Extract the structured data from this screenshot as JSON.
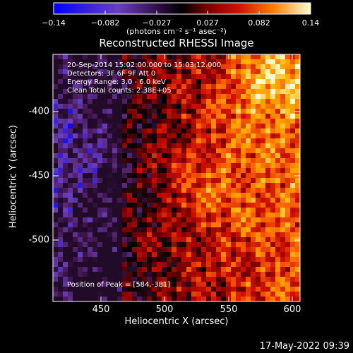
{
  "colorbar": {
    "ticks": [
      "−0.14",
      "−0.082",
      "−0.027",
      "0.027",
      "0.082",
      "0.14"
    ],
    "units": "(photons cm⁻² s⁻¹ asec⁻²)"
  },
  "title": "Reconstructed RHESSI Image",
  "info_lines": [
    "20-Sep-2014 15:02:00.000 to 15:03:12.000",
    "Detectors: 3F 6F 9F  Att 0",
    "Energy Range: 3.0 - 6.0 keV",
    "Clean    Total counts: 2.38E+05"
  ],
  "peak_text": "Position of Peak = [584,-381]",
  "x_axis": {
    "label": "Heliocentric X (arcsec)",
    "ticks": [
      "450",
      "500",
      "550",
      "600"
    ]
  },
  "y_axis": {
    "label": "Heliocentric Y (arcsec)",
    "ticks": [
      "-400",
      "-450",
      "-500"
    ]
  },
  "timestamp": "17-May-2022 09:39",
  "colors": {
    "cmap": [
      "#0000ff",
      "#6a3fbf",
      "#4a1a5a",
      "#000000",
      "#7a0000",
      "#d01000",
      "#ff6a00",
      "#ffb000",
      "#ffffd0"
    ]
  }
}
